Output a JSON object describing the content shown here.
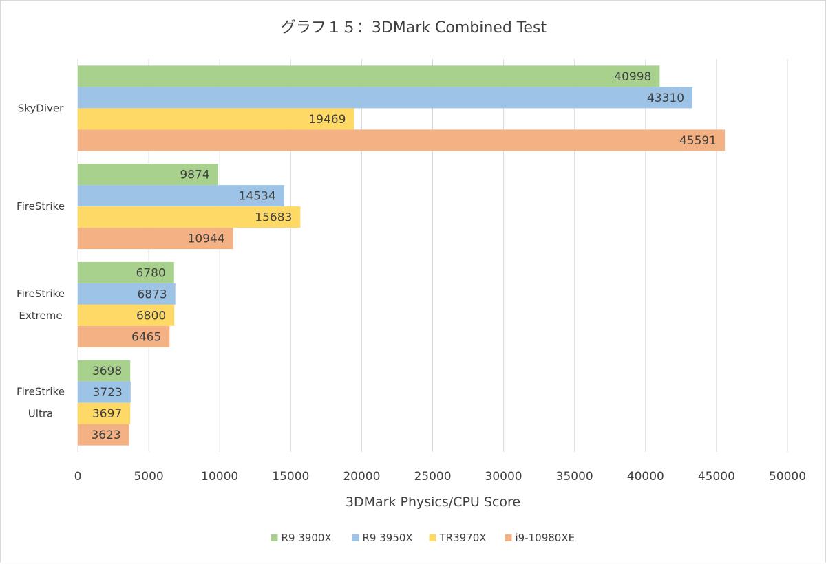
{
  "chart_data": {
    "type": "bar",
    "orientation": "horizontal",
    "title": "グラフ１５：3DMark Combined Test",
    "xlabel": "3DMark Physics/CPU Score",
    "ylabel": "",
    "xlim": [
      0,
      50000
    ],
    "x_ticks": [
      0,
      5000,
      10000,
      15000,
      20000,
      25000,
      30000,
      35000,
      40000,
      45000,
      50000
    ],
    "grid": "vertical",
    "legend_position": "bottom",
    "categories": [
      {
        "lines": [
          "SkyDiver"
        ]
      },
      {
        "lines": [
          "FireStrike"
        ]
      },
      {
        "lines": [
          "FireStrike",
          "Extreme"
        ]
      },
      {
        "lines": [
          "FireStrike",
          "Ultra"
        ]
      }
    ],
    "series": [
      {
        "name": "R9 3900X",
        "color": "#a9d18e",
        "values": [
          40998,
          9874,
          6780,
          3698
        ]
      },
      {
        "name": "R9 3950X",
        "color": "#9dc3e6",
        "values": [
          43310,
          14534,
          6873,
          3723
        ]
      },
      {
        "name": "TR3970X",
        "color": "#ffd966",
        "values": [
          19469,
          15683,
          6800,
          3697
        ]
      },
      {
        "name": "i9-10980XE",
        "color": "#f4b183",
        "values": [
          45591,
          10944,
          6465,
          3623
        ]
      }
    ],
    "data_labels": true
  }
}
